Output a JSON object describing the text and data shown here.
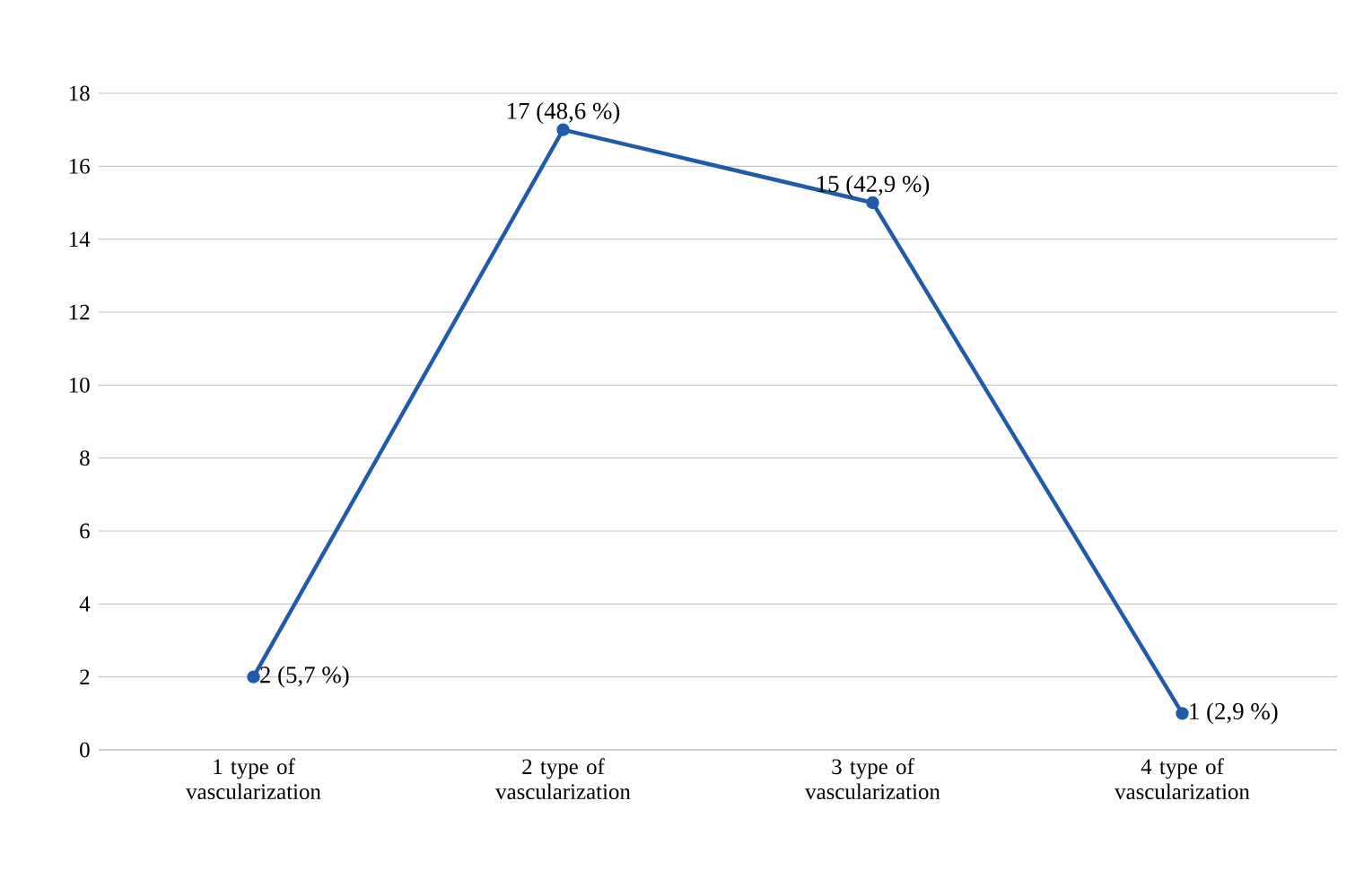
{
  "chart_data": {
    "type": "line",
    "categories": [
      "1 type of vascularization",
      "2 type of vascularization",
      "3 type of vascularization",
      "4 type of vascularization"
    ],
    "values": [
      2,
      17,
      15,
      1
    ],
    "value_labels": [
      "2 (5,7 %)",
      "17 (48,6 %)",
      "15 (42,9 %)",
      "1 (2,9 %)"
    ],
    "color": "#1f5ba8",
    "ylim": [
      0,
      18
    ],
    "yticks": [
      0,
      2,
      4,
      6,
      8,
      10,
      12,
      14,
      16,
      18
    ],
    "grid": "y",
    "marker": "circle",
    "line_style": "solid"
  }
}
